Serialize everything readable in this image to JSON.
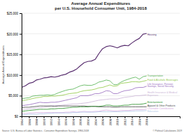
{
  "chart_data": {
    "type": "line",
    "title": "Average Annual Expenditures\nper U.S. Household Consumer Unit, 1984-2018",
    "ylabel": "Average Annual Expenditures",
    "x": [
      1984,
      1985,
      1986,
      1987,
      1988,
      1989,
      1990,
      1991,
      1992,
      1993,
      1994,
      1995,
      1996,
      1997,
      1998,
      1999,
      2000,
      2001,
      2002,
      2003,
      2004,
      2005,
      2006,
      2007,
      2008,
      2009,
      2010,
      2011,
      2012,
      2013,
      2014,
      2015,
      2016,
      2017,
      2018
    ],
    "series": [
      {
        "color": "#5a3070",
        "values": [
          7000,
          7400,
          8000,
          8200,
          8800,
          9000,
          9300,
          9400,
          9600,
          9500,
          9700,
          10000,
          10200,
          10700,
          11000,
          11500,
          12300,
          13000,
          13300,
          13400,
          13800,
          15200,
          16400,
          16900,
          17100,
          16900,
          16600,
          17000,
          17200,
          17100,
          17800,
          18400,
          18900,
          19900,
          20100
        ]
      },
      {
        "color": "#4daf4a",
        "values": [
          4200,
          4400,
          4500,
          4900,
          5000,
          5100,
          5100,
          5200,
          5100,
          5300,
          5700,
          6000,
          6300,
          6500,
          6600,
          7000,
          7400,
          7600,
          7500,
          7500,
          7800,
          8300,
          8500,
          8800,
          8600,
          7700,
          7700,
          8300,
          8700,
          9000,
          9300,
          9500,
          9000,
          9600,
          9800
        ]
      },
      {
        "color": "#8dc63f",
        "values": [
          3800,
          3900,
          4100,
          4300,
          4500,
          4600,
          4800,
          4800,
          4900,
          4900,
          5000,
          5100,
          5300,
          5500,
          5600,
          5700,
          6000,
          6200,
          6300,
          6400,
          6600,
          6900,
          7000,
          7300,
          7600,
          7300,
          7400,
          8000,
          8100,
          8200,
          8400,
          8400,
          8300,
          8500,
          8700
        ]
      },
      {
        "color": "#9467bd",
        "values": [
          2500,
          2700,
          2800,
          3000,
          3200,
          3400,
          3300,
          3300,
          3400,
          3400,
          3500,
          3700,
          3900,
          4100,
          4300,
          4500,
          5000,
          5000,
          5000,
          5200,
          5500,
          5500,
          5800,
          6200,
          6100,
          5500,
          5500,
          5900,
          6200,
          6300,
          6500,
          6900,
          7000,
          7000,
          7300
        ]
      },
      {
        "color": "#c9b3d5",
        "values": [
          1600,
          1700,
          1800,
          1900,
          2000,
          2100,
          2200,
          2300,
          2500,
          2600,
          2600,
          2700,
          2800,
          2900,
          3000,
          3000,
          3100,
          3200,
          3300,
          3500,
          3700,
          3900,
          4000,
          4100,
          4200,
          4200,
          4200,
          4400,
          4600,
          4700,
          4800,
          5000,
          5000,
          5100,
          5200
        ]
      },
      {
        "color": "#444444",
        "values": [
          2100,
          2200,
          2200,
          2300,
          2400,
          2500,
          2500,
          2500,
          2500,
          2400,
          2500,
          2500,
          2500,
          2500,
          2500,
          2500,
          2500,
          2500,
          2400,
          2400,
          2400,
          2300,
          2300,
          2300,
          2300,
          2200,
          2200,
          2300,
          2300,
          2300,
          2300,
          2300,
          2300,
          2300,
          2300
        ]
      },
      {
        "color": "#228b22",
        "values": [
          1200,
          1300,
          1400,
          1500,
          1600,
          1700,
          1700,
          1700,
          1800,
          1800,
          1900,
          1900,
          2000,
          2100,
          2200,
          2200,
          2300,
          2300,
          2300,
          2400,
          2400,
          2400,
          2500,
          2700,
          2700,
          2500,
          2500,
          2600,
          2700,
          2700,
          2900,
          2900,
          2900,
          3000,
          3200
        ]
      },
      {
        "color": "#d4a9e0",
        "values": [
          700,
          700,
          800,
          800,
          900,
          900,
          900,
          900,
          900,
          900,
          900,
          900,
          1000,
          1000,
          1100,
          1000,
          1100,
          1200,
          1100,
          1100,
          1200,
          1200,
          1400,
          1500,
          1400,
          1300,
          1300,
          1400,
          1400,
          1400,
          1500,
          1600,
          1600,
          1600,
          1800
        ]
      },
      {
        "color": "#b0c8e8",
        "values": [
          400,
          400,
          500,
          500,
          500,
          600,
          600,
          700,
          700,
          800,
          800,
          800,
          800,
          800,
          900,
          900,
          1000,
          1000,
          1000,
          1000,
          1000,
          1100,
          1100,
          1100,
          1100,
          1100,
          1100,
          1100,
          1200,
          1200,
          1200,
          1300,
          1300,
          1300,
          1400
        ]
      }
    ],
    "xlim": [
      1984,
      2027
    ],
    "xticks": [
      1984,
      1986,
      1988,
      1990,
      1992,
      1994,
      1996,
      1998,
      2000,
      2002,
      2004,
      2006,
      2008,
      2010,
      2012,
      2014,
      2016,
      2018
    ],
    "ylim": [
      0,
      25000
    ],
    "yticks": [
      {
        "value": 0,
        "label": "$0"
      },
      {
        "value": 5000,
        "label": "$5,000"
      },
      {
        "value": 10000,
        "label": "$10,000"
      },
      {
        "value": 15000,
        "label": "$15,000"
      },
      {
        "value": 20000,
        "label": "$20,000"
      },
      {
        "value": 25000,
        "label": "$25,000"
      }
    ],
    "grid": true,
    "annotations": [
      {
        "text": "Housing",
        "x": 2018.2,
        "y": 19800,
        "color": "#5a3070"
      },
      {
        "text": "Transportation",
        "x": 2018.2,
        "y": 9900,
        "color": "#4daf4a"
      },
      {
        "text": "Food & Alcoholic Beverages",
        "x": 2018.2,
        "y": 8850,
        "color": "#8dc63f"
      },
      {
        "text": "Life Insurance, Pension\nSavings, Social Security",
        "x": 2018.2,
        "y": 7550,
        "color": "#9467bd"
      },
      {
        "text": "Health Insurance & Medical\nExpenses",
        "x": 2018.2,
        "y": 5400,
        "color": "#c9b3d5"
      },
      {
        "text": "Apparel & Other Products",
        "x": 2018.2,
        "y": 2500,
        "color": "#444444"
      },
      {
        "text": "Entertainment",
        "x": 2018.2,
        "y": 3350,
        "color": "#228b22"
      },
      {
        "text": "Charitable Contributions",
        "x": 2018.2,
        "y": 1900,
        "color": "#d4a9e0"
      },
      {
        "text": "Education",
        "x": 2018.2,
        "y": 1200,
        "color": "#b0c8e8"
      }
    ],
    "source": "Source: U.S. Bureau of Labor Statistics - Consumer Expenditure Surveys, 1984-2018",
    "credit": "© Political Calculations 2019"
  }
}
